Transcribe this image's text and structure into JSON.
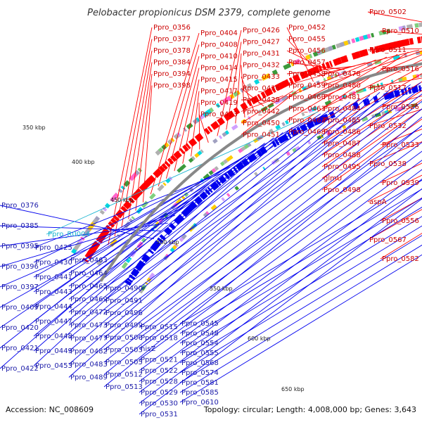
{
  "title": "Pelobacter propionicus DSM 2379, complete genome",
  "footer": {
    "accession": "Accession: NC_008609",
    "summary": "Topology: circular; Length: 4,008,000 bp; Genes: 3,643"
  },
  "colors": {
    "forward": "#ff0000",
    "reverse": "#0000ee",
    "rna": "#19b4d0",
    "backbone": "#888888"
  },
  "scale_ticks": [
    "350 kbp",
    "400 kbp",
    "450 kbp",
    "500 kbp",
    "550 kbp",
    "600 kbp",
    "650 kbp"
  ],
  "forward_labels": [
    "Ppro_0356",
    "Ppro_0377",
    "Ppro_0378",
    "Ppro_0384",
    "Ppro_0394",
    "Ppro_0398",
    "Ppro_0404",
    "Ppro_0408",
    "Ppro_0410",
    "Ppro_0414",
    "Ppro_0415",
    "Ppro_0417",
    "Ppro_0419",
    "Ppro_0423",
    "Ppro_0426",
    "Ppro_0427",
    "Ppro_0431",
    "Ppro_0432",
    "Ppro_0433",
    "Ppro_0436",
    "Ppro_0438",
    "Ppro_0442",
    "Ppro_0450",
    "Ppro_0451",
    "Ppro_0452",
    "Ppro_0455",
    "Ppro_0456",
    "Ppro_0457",
    "Ppro_0458",
    "Ppro_0459",
    "Ppro_0460",
    "Ppro_0461",
    "Ppro_0462",
    "Ppro_0468",
    "Ppro_0478",
    "Ppro_0480",
    "Ppro_0481",
    "Ppro_0484",
    "Ppro_0485",
    "Ppro_0486",
    "Ppro_0487",
    "Ppro_0488",
    "Ppro_0495",
    "glmU",
    "Ppro_0498",
    "Ppro_0502",
    "Ppro_0510",
    "Ppro_0511",
    "Ppro_0516",
    "Ppro_0517",
    "Ppro_0526",
    "Ppro_0532",
    "Ppro_0533",
    "Ppro_0538",
    "Ppro_0539",
    "aspA",
    "Ppro_0556",
    "Ppro_0567",
    "Ppro_0582"
  ],
  "reverse_labels": [
    "Ppro_0376",
    "Ppro_0385",
    "Ppro_0395",
    "Ppro_0396",
    "Ppro_0397",
    "Ppro_0409",
    "Ppro_0420",
    "Ppro_0421",
    "Ppro_0422",
    "Ppro_0425",
    "Ppro_0430",
    "Ppro_0441",
    "Ppro_0443",
    "Ppro_0444",
    "Ppro_0447",
    "Ppro_0448",
    "Ppro_0449",
    "Ppro_0453",
    "Ppro_0463",
    "Ppro_0464",
    "Ppro_0465",
    "Ppro_0469",
    "Ppro_0472",
    "Ppro_0473",
    "Ppro_0477",
    "Ppro_0482",
    "Ppro_0483",
    "Ppro_0489",
    "Ppro_0490",
    "Ppro_0491",
    "Ppro_0496",
    "Ppro_0499",
    "Ppro_0500",
    "Ppro_0503",
    "Ppro_0505",
    "Ppro_0512",
    "Ppro_0513",
    "Ppro_0515",
    "Ppro_0518",
    "hisZ",
    "Ppro_0521",
    "Ppro_0522",
    "Ppro_0528",
    "Ppro_0529",
    "Ppro_0530",
    "Ppro_0531",
    "Ppro_0545",
    "Ppro_0548",
    "Ppro_0554",
    "Ppro_0555",
    "Ppro_0568",
    "Ppro_0574",
    "Ppro_0581",
    "Ppro_0585",
    "Ppro_0610"
  ],
  "rna_labels": [
    "Ppro_R0004"
  ]
}
